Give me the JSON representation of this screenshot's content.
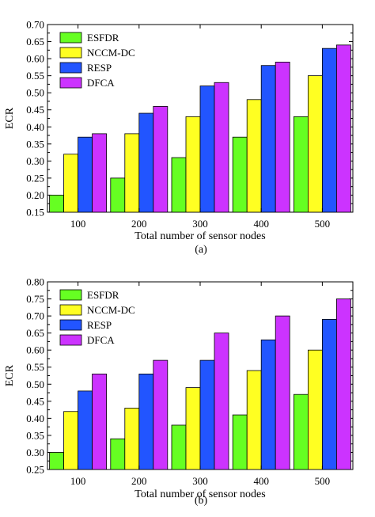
{
  "chart_data": [
    {
      "type": "bar",
      "caption": "(a)",
      "xlabel": "Total number of sensor nodes",
      "ylabel": "ECR",
      "categories": [
        "100",
        "200",
        "300",
        "400",
        "500"
      ],
      "ylim": [
        0.15,
        0.7
      ],
      "yticks": [
        "0.15",
        "0.20",
        "0.25",
        "0.30",
        "0.35",
        "0.40",
        "0.45",
        "0.50",
        "0.55",
        "0.60",
        "0.65",
        "0.70"
      ],
      "legend_position": "top-left",
      "grid": false,
      "series": [
        {
          "name": "ESFDR",
          "color": "#66ff22",
          "values": [
            0.2,
            0.25,
            0.31,
            0.37,
            0.43
          ]
        },
        {
          "name": "NCCM-DC",
          "color": "#ffff22",
          "values": [
            0.32,
            0.38,
            0.43,
            0.48,
            0.55
          ]
        },
        {
          "name": "RESP",
          "color": "#2255ff",
          "values": [
            0.37,
            0.44,
            0.52,
            0.58,
            0.63
          ]
        },
        {
          "name": "DFCA",
          "color": "#cc33ff",
          "values": [
            0.38,
            0.46,
            0.53,
            0.59,
            0.64
          ]
        }
      ]
    },
    {
      "type": "bar",
      "caption": "(b)",
      "xlabel": "Total number of sensor nodes",
      "ylabel": "ECR",
      "categories": [
        "100",
        "200",
        "300",
        "400",
        "500"
      ],
      "ylim": [
        0.25,
        0.8
      ],
      "yticks": [
        "0.25",
        "0.30",
        "0.35",
        "0.40",
        "0.45",
        "0.50",
        "0.55",
        "0.60",
        "0.65",
        "0.70",
        "0.75",
        "0.80"
      ],
      "legend_position": "top-left",
      "grid": false,
      "series": [
        {
          "name": "ESFDR",
          "color": "#66ff22",
          "values": [
            0.3,
            0.34,
            0.38,
            0.41,
            0.47
          ]
        },
        {
          "name": "NCCM-DC",
          "color": "#ffff22",
          "values": [
            0.42,
            0.43,
            0.49,
            0.54,
            0.6
          ]
        },
        {
          "name": "RESP",
          "color": "#2255ff",
          "values": [
            0.48,
            0.53,
            0.57,
            0.63,
            0.69
          ]
        },
        {
          "name": "DFCA",
          "color": "#cc33ff",
          "values": [
            0.53,
            0.57,
            0.65,
            0.7,
            0.75
          ]
        }
      ]
    }
  ]
}
